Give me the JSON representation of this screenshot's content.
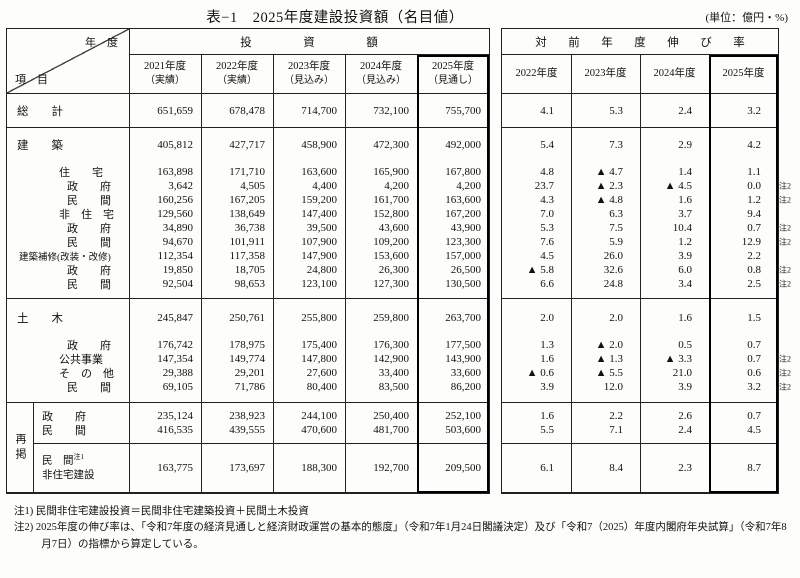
{
  "title": "表−1　2025年度建設投資額（名目値）",
  "unit_note": "(単位：億円・%)",
  "left_table": {
    "corner_top": "年　度",
    "corner_bottom": "項　目",
    "group_header": "投　資　額",
    "columns": [
      {
        "year": "2021年度",
        "note": "（実績）"
      },
      {
        "year": "2022年度",
        "note": "（実績）"
      },
      {
        "year": "2023年度",
        "note": "（見込み）"
      },
      {
        "year": "2024年度",
        "note": "（見込み）"
      },
      {
        "year": "2025年度",
        "note": "（見通し）",
        "highlight": true
      }
    ]
  },
  "right_table": {
    "group_header": "対　前　年　度　伸　び　率",
    "columns": [
      {
        "year": "2022年度"
      },
      {
        "year": "2023年度"
      },
      {
        "year": "2024年度"
      },
      {
        "year": "2025年度",
        "highlight": true
      }
    ]
  },
  "sections": [
    {
      "rows": [
        {
          "kind": "total",
          "indent": "lv0",
          "label": "総　　計",
          "values": [
            "651,659",
            "678,478",
            "714,700",
            "732,100",
            "755,700"
          ],
          "rates": [
            "4.1",
            "5.3",
            "2.4",
            "3.2"
          ]
        }
      ]
    },
    {
      "rows": [
        {
          "kind": "major",
          "indent": "lv0",
          "label": "建　　築",
          "values": [
            "405,812",
            "427,717",
            "458,900",
            "472,300",
            "492,000"
          ],
          "rates": [
            "5.4",
            "7.3",
            "2.9",
            "4.2"
          ]
        },
        {
          "kind": "sub",
          "indent": "lv1",
          "label": "住　　宅",
          "values": [
            "163,898",
            "171,710",
            "163,600",
            "165,900",
            "167,800"
          ],
          "rates": [
            "4.8",
            "▲ 4.7",
            "1.4",
            "1.1"
          ]
        },
        {
          "kind": "sub",
          "indent": "lv2",
          "label": "政　　府",
          "values": [
            "3,642",
            "4,505",
            "4,400",
            "4,200",
            "4,200"
          ],
          "rates": [
            "23.7",
            "▲ 2.3",
            "▲ 4.5",
            "0.0"
          ],
          "note": "注2"
        },
        {
          "kind": "sub",
          "indent": "lv2",
          "label": "民　　間",
          "values": [
            "160,256",
            "167,205",
            "159,200",
            "161,700",
            "163,600"
          ],
          "rates": [
            "4.3",
            "▲ 4.8",
            "1.6",
            "1.2"
          ],
          "note": "注2"
        },
        {
          "kind": "sub",
          "indent": "lv1",
          "label": "非　住　宅",
          "values": [
            "129,560",
            "138,649",
            "147,400",
            "152,800",
            "167,200"
          ],
          "rates": [
            "7.0",
            "6.3",
            "3.7",
            "9.4"
          ]
        },
        {
          "kind": "sub",
          "indent": "lv2",
          "label": "政　　府",
          "values": [
            "34,890",
            "36,738",
            "39,500",
            "43,600",
            "43,900"
          ],
          "rates": [
            "5.3",
            "7.5",
            "10.4",
            "0.7"
          ],
          "note": "注2"
        },
        {
          "kind": "sub",
          "indent": "lv2",
          "label": "民　　間",
          "values": [
            "94,670",
            "101,911",
            "107,900",
            "109,200",
            "123,300"
          ],
          "rates": [
            "7.6",
            "5.9",
            "1.2",
            "12.9"
          ],
          "note": "注2"
        },
        {
          "kind": "sub",
          "indent": "lv1w",
          "label": "建築補修(改装・改修)",
          "values": [
            "112,354",
            "117,358",
            "147,900",
            "153,600",
            "157,000"
          ],
          "rates": [
            "4.5",
            "26.0",
            "3.9",
            "2.2"
          ]
        },
        {
          "kind": "sub",
          "indent": "lv2",
          "label": "政　　府",
          "values": [
            "19,850",
            "18,705",
            "24,800",
            "26,300",
            "26,500"
          ],
          "rates": [
            "▲ 5.8",
            "32.6",
            "6.0",
            "0.8"
          ],
          "note": "注2"
        },
        {
          "kind": "sub",
          "indent": "lv2",
          "label": "民　　間",
          "values": [
            "92,504",
            "98,653",
            "123,100",
            "127,300",
            "130,500"
          ],
          "rates": [
            "6.6",
            "24.8",
            "3.4",
            "2.5"
          ],
          "note": "注2"
        }
      ]
    },
    {
      "rows": [
        {
          "kind": "major",
          "indent": "lv0",
          "label": "土　　木",
          "values": [
            "245,847",
            "250,761",
            "255,800",
            "259,800",
            "263,700"
          ],
          "rates": [
            "2.0",
            "2.0",
            "1.6",
            "1.5"
          ]
        },
        {
          "kind": "sub",
          "indent": "lv2",
          "label": "政　　府",
          "values": [
            "176,742",
            "178,975",
            "175,400",
            "176,300",
            "177,500"
          ],
          "rates": [
            "1.3",
            "▲ 2.0",
            "0.5",
            "0.7"
          ]
        },
        {
          "kind": "sub",
          "indent": "lv1",
          "label": "公共事業",
          "values": [
            "147,354",
            "149,774",
            "147,800",
            "142,900",
            "143,900"
          ],
          "rates": [
            "1.6",
            "▲ 1.3",
            "▲ 3.3",
            "0.7"
          ],
          "note": "注2"
        },
        {
          "kind": "sub",
          "indent": "lv1",
          "label": "そ　の　他",
          "values": [
            "29,388",
            "29,201",
            "27,600",
            "33,400",
            "33,600"
          ],
          "rates": [
            "▲ 0.6",
            "▲ 5.5",
            "21.0",
            "0.6"
          ],
          "note": "注2"
        },
        {
          "kind": "sub",
          "indent": "lv2",
          "label": "民　　間",
          "values": [
            "69,105",
            "71,786",
            "80,400",
            "83,500",
            "86,200"
          ],
          "rates": [
            "3.9",
            "12.0",
            "3.9",
            "3.2"
          ],
          "note": "注2"
        }
      ]
    }
  ],
  "saikei": {
    "label_vertical": "再掲",
    "rows_top": [
      {
        "label": "政　　府",
        "values": [
          "235,124",
          "238,923",
          "244,100",
          "250,400",
          "252,100"
        ],
        "rates": [
          "1.6",
          "2.2",
          "2.6",
          "0.7"
        ]
      },
      {
        "label": "民　　間",
        "values": [
          "416,535",
          "439,555",
          "470,600",
          "481,700",
          "503,600"
        ],
        "rates": [
          "5.5",
          "7.1",
          "2.4",
          "4.5"
        ]
      }
    ],
    "row_bottom": {
      "label_line1": "民　間",
      "label_sup": "注1",
      "label_line2": "非住宅建設",
      "values": [
        "163,775",
        "173,697",
        "188,300",
        "192,700",
        "209,500"
      ],
      "rates": [
        "6.1",
        "8.4",
        "2.3",
        "8.7"
      ]
    }
  },
  "footnotes": [
    "注1) 民間非住宅建設投資＝民間非住宅建築投資＋民間土木投資",
    "注2) 2025年度の伸び率は、「令和7年度の経済見通しと経済財政運営の基本的態度」（令和7年1月24日閣議決定）及び「令和7（2025）年度内閣府年央試算」（令和7年8月7日）の指標から算定している。"
  ]
}
